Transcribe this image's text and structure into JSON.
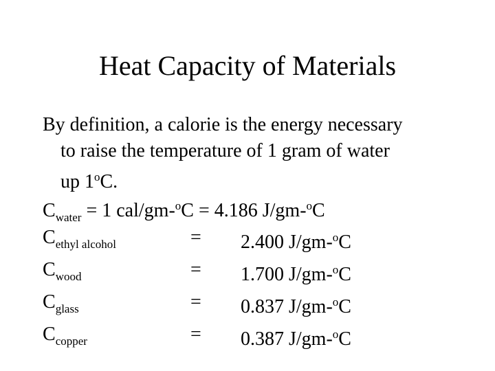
{
  "title": "Heat Capacity of Materials",
  "definition": {
    "lines": [
      "By definition, a calorie is the energy necessary",
      "to raise the temperature of 1 gram of water",
      "up 1"
    ],
    "degree": "o",
    "end": "C."
  },
  "water": {
    "symbol": "C",
    "subscript": "water",
    "part1": " = 1 cal/gm-",
    "degree1": "o",
    "part2": "C = 4.186 J/gm-",
    "degree2": "o",
    "part3": "C"
  },
  "materials": [
    {
      "symbol": "C",
      "subscript": "ethyl alcohol",
      "equals": "=",
      "value": "2.400",
      "unit": " J/gm-",
      "degree": "o",
      "unit_end": "C"
    },
    {
      "symbol": "C",
      "subscript": "wood",
      "equals": "=",
      "value": "1.700",
      "unit": " J/gm-",
      "degree": "o",
      "unit_end": "C"
    },
    {
      "symbol": "C",
      "subscript": "glass",
      "equals": "=",
      "value": "0.837",
      "unit": " J/gm-",
      "degree": "o",
      "unit_end": "C"
    },
    {
      "symbol": "C",
      "subscript": "copper",
      "equals": "=",
      "value": "0.387",
      "unit": " J/gm-",
      "degree": "o",
      "unit_end": "C"
    }
  ]
}
